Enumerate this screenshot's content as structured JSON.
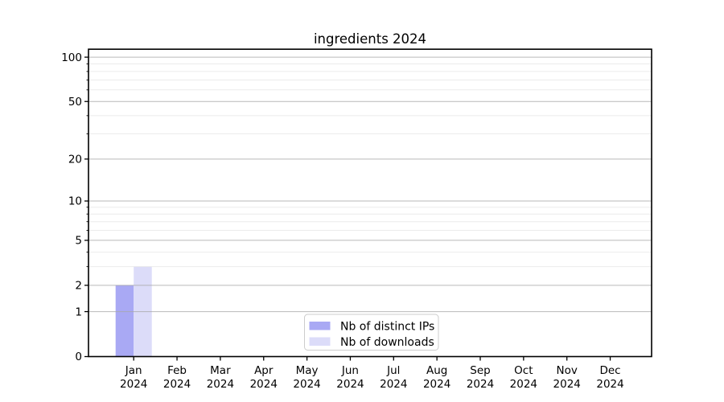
{
  "figure": {
    "title": "ingredients 2024"
  },
  "chart_data": {
    "type": "bar",
    "title": "ingredients 2024",
    "categories": [
      "Jan",
      "Feb",
      "Mar",
      "Apr",
      "May",
      "Jun",
      "Jul",
      "Aug",
      "Sep",
      "Oct",
      "Nov",
      "Dec"
    ],
    "category_year": "2024",
    "series": [
      {
        "name": "Nb of distinct IPs",
        "color": "#a9a9f4",
        "values": [
          2,
          0,
          0,
          0,
          0,
          0,
          0,
          0,
          0,
          0,
          0,
          0
        ]
      },
      {
        "name": "Nb of downloads",
        "color": "#dcdcf9",
        "values": [
          3,
          0,
          0,
          0,
          0,
          0,
          0,
          0,
          0,
          0,
          0,
          0
        ]
      }
    ],
    "xlabel": "",
    "ylabel": "",
    "yscale": "log1p",
    "ylim": [
      0,
      113
    ],
    "yticks_major": [
      0,
      1,
      2,
      5,
      10,
      20,
      50,
      100
    ],
    "yticks_minor": [
      3,
      4,
      6,
      7,
      8,
      9,
      30,
      40,
      60,
      70,
      80,
      90
    ],
    "grid": true,
    "legend_position": "lower center",
    "colors": {
      "axis": "#000000",
      "grid_major": "#a8a8a8",
      "grid_minor": "#e2e2e2",
      "legend_border": "#cccccc",
      "legend_bg": "#ffffff",
      "plot_bg": "#ffffff"
    }
  }
}
